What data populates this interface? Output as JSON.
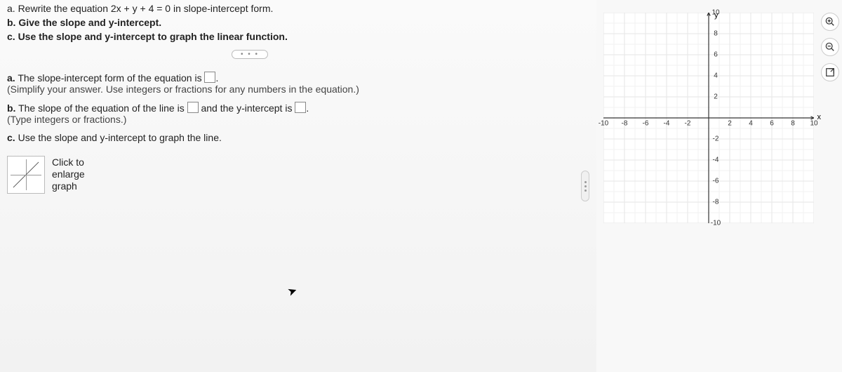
{
  "problem": {
    "a": "a. Rewrite the equation 2x + y + 4 = 0 in slope-intercept form.",
    "b": "b. Give the slope and y-intercept.",
    "c": "c. Use the slope and y-intercept to graph the linear function."
  },
  "ellipsis": "• • •",
  "answers": {
    "a_prefix": "a.",
    "a_text1": " The slope-intercept form of the equation is ",
    "a_text2": ".",
    "a_hint": "(Simplify your answer. Use integers or fractions for any numbers in the equation.)",
    "b_prefix": "b.",
    "b_text1": " The slope of the equation of the line is ",
    "b_text2": " and the y-intercept is ",
    "b_text3": ".",
    "b_hint": "(Type integers or fractions.)",
    "c_prefix": "c.",
    "c_text": " Use the slope and y-intercept to graph the line."
  },
  "thumb": {
    "line1": "Click to",
    "line2": "enlarge",
    "line3": "graph"
  },
  "graph": {
    "xlim": [
      -10,
      10
    ],
    "ylim": [
      -10,
      10
    ],
    "tick_step": 2,
    "minor_step": 1,
    "grid_color": "#e5e5e5",
    "minor_grid_color": "#f2f2f2",
    "axis_color": "#333333",
    "background_color": "#ffffff",
    "label_fontsize": 10,
    "y_label": "y",
    "x_label": "x",
    "x_ticks": [
      -10,
      -8,
      -6,
      -4,
      -2,
      2,
      4,
      6,
      8,
      10
    ],
    "y_ticks": [
      10,
      8,
      6,
      4,
      2,
      -2,
      -4,
      -6,
      -8,
      -10
    ]
  },
  "toolbar": {
    "zoom_in": "zoom-in",
    "zoom_out": "zoom-out",
    "fullscreen": "fullscreen"
  }
}
